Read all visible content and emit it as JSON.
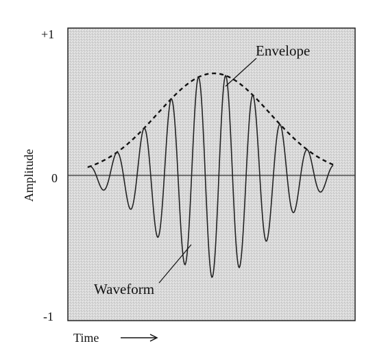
{
  "y_ticks": {
    "top": "+1",
    "mid": "0",
    "bottom": "-1"
  },
  "axis_titles": {
    "y": "Amplitude",
    "x": "Time"
  },
  "labels": {
    "envelope": "Envelope",
    "waveform": "Waveform"
  },
  "colors": {
    "plot_background": "#d9d9d9",
    "waveform": "#222222",
    "envelope": "#111111",
    "frame": "#222222"
  },
  "signal": {
    "peak_amplitude": 0.73,
    "oscillation_cycles": 9
  }
}
